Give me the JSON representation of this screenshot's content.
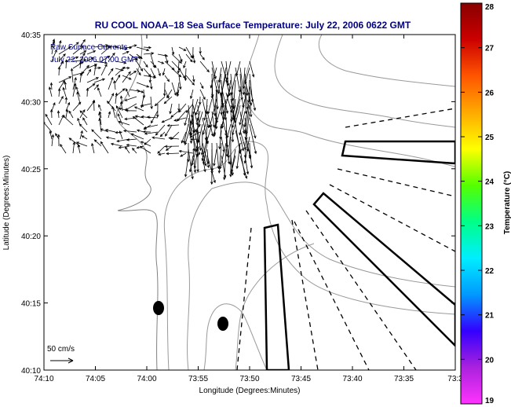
{
  "chart_data": {
    "type": "heatmap",
    "title": "RU COOL  NOAA–18  Sea Surface Temperature:  July 22, 2006 0622 GMT",
    "xlabel": "Longitude (Degrees:Minutes)",
    "ylabel": "Latitude (Degrees:Minutes)",
    "x_tick_labels": [
      "74:10",
      "74:05",
      "74:00",
      "73:55",
      "73:50",
      "73:45",
      "73:40",
      "73:35",
      "73:3"
    ],
    "y_tick_labels": [
      "40:10",
      "40:15",
      "40:20",
      "40:25",
      "40:30",
      "40:35"
    ],
    "x_range_minutes_west": [
      10,
      30
    ],
    "y_range_minutes_north": [
      10,
      35
    ],
    "currents_label": "Raw Surface Currents",
    "currents_date": "July 22, 2006 07:00 GMT",
    "scale_label": "50 cm/s",
    "colorbar": {
      "label": "Temperature (°C)",
      "min": 19,
      "max": 28,
      "tick_labels": [
        "19",
        "20",
        "21",
        "22",
        "23",
        "24",
        "25",
        "26",
        "27",
        "28"
      ],
      "colors": [
        "#ff33ff",
        "#aa22dd",
        "#3300ff",
        "#0099ff",
        "#00eeff",
        "#00ff88",
        "#55ff00",
        "#ffff00",
        "#ffaa00",
        "#ff5500",
        "#cc0000",
        "#880000"
      ]
    }
  }
}
